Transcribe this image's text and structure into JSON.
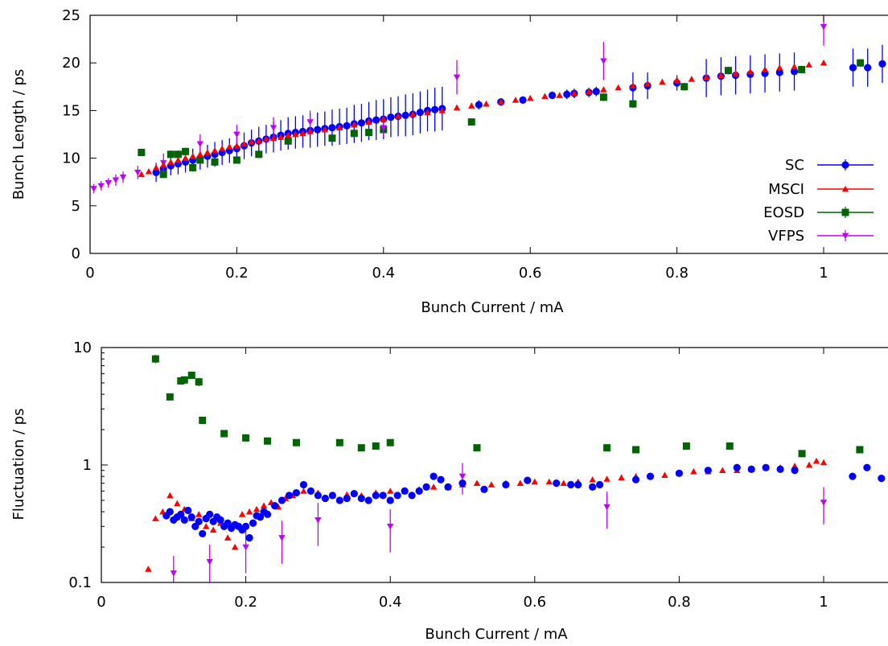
{
  "colors": {
    "SC": "#0000ff",
    "MSCI": "#ff0000",
    "EOSD": "#006400",
    "VFPS": "#bf00ff"
  },
  "chart_data": [
    {
      "type": "scatter",
      "xlabel": "Bunch Current / mA",
      "ylabel": "Bunch Length / ps",
      "xlim": [
        0,
        1.2
      ],
      "ylim": [
        0,
        25
      ],
      "xticks": [
        0,
        0.2,
        0.4,
        0.6,
        0.8,
        1
      ],
      "xtick_labels": [
        "0",
        "0.2",
        "0.4",
        "0.6",
        "0.8",
        "1"
      ],
      "yticks": [
        0,
        5,
        10,
        15,
        20,
        25
      ],
      "ytick_labels": [
        "0",
        "5",
        "10",
        "15",
        "20",
        "25"
      ],
      "legend": {
        "position": "right",
        "entries": [
          "SC",
          "MSCI",
          "EOSD",
          "VFPS"
        ]
      },
      "series": [
        {
          "name": "SC",
          "marker": "circle",
          "line": true,
          "x": [
            0.09,
            0.1,
            0.11,
            0.12,
            0.13,
            0.14,
            0.15,
            0.16,
            0.17,
            0.18,
            0.19,
            0.2,
            0.21,
            0.22,
            0.23,
            0.24,
            0.25,
            0.26,
            0.27,
            0.28,
            0.29,
            0.3,
            0.31,
            0.32,
            0.33,
            0.34,
            0.35,
            0.36,
            0.37,
            0.38,
            0.39,
            0.4,
            0.41,
            0.42,
            0.43,
            0.44,
            0.45,
            0.46,
            0.47,
            0.48,
            0.53,
            0.56,
            0.59,
            0.63,
            0.65,
            0.66,
            0.68,
            0.69,
            0.74,
            0.76,
            0.8,
            0.84,
            0.86,
            0.88,
            0.9,
            0.92,
            0.94,
            0.96,
            1.04,
            1.06,
            1.08
          ],
          "y": [
            8.5,
            8.9,
            9.2,
            9.4,
            9.6,
            9.8,
            10.0,
            10.2,
            10.4,
            10.6,
            10.8,
            11.0,
            11.3,
            11.6,
            11.8,
            12.0,
            12.2,
            12.4,
            12.6,
            12.7,
            12.8,
            12.9,
            13.0,
            13.1,
            13.2,
            13.3,
            13.4,
            13.6,
            13.7,
            13.9,
            14.0,
            14.1,
            14.3,
            14.4,
            14.5,
            14.6,
            14.8,
            15.0,
            15.1,
            15.2,
            15.6,
            15.9,
            16.1,
            16.6,
            16.7,
            16.8,
            16.9,
            17.0,
            17.4,
            17.6,
            17.9,
            18.4,
            18.6,
            18.7,
            18.8,
            18.9,
            19.0,
            19.1,
            19.5,
            19.5,
            19.9
          ],
          "err": [
            1.0,
            1.0,
            1.0,
            1.1,
            1.1,
            1.2,
            1.2,
            1.2,
            1.3,
            1.3,
            1.3,
            1.4,
            1.4,
            1.4,
            1.5,
            1.5,
            1.6,
            1.6,
            1.7,
            1.7,
            1.7,
            1.8,
            1.8,
            1.8,
            1.9,
            1.9,
            1.9,
            2.0,
            2.0,
            2.0,
            2.1,
            2.1,
            2.1,
            2.1,
            2.2,
            2.2,
            2.2,
            2.2,
            2.3,
            2.3,
            0.5,
            0.4,
            0.4,
            0.4,
            0.5,
            0.5,
            0.5,
            0.5,
            1.6,
            1.4,
            0.8,
            2.0,
            2.0,
            2.0,
            2.0,
            2.0,
            2.0,
            2.0,
            2.0,
            2.0,
            2.0
          ]
        },
        {
          "name": "MSCI",
          "marker": "triangle-up",
          "line": true,
          "x": [
            0.07,
            0.08,
            0.09,
            0.1,
            0.11,
            0.12,
            0.13,
            0.14,
            0.15,
            0.16,
            0.17,
            0.18,
            0.19,
            0.2,
            0.21,
            0.22,
            0.23,
            0.24,
            0.25,
            0.26,
            0.27,
            0.28,
            0.29,
            0.3,
            0.32,
            0.34,
            0.36,
            0.38,
            0.4,
            0.42,
            0.44,
            0.46,
            0.48,
            0.5,
            0.52,
            0.54,
            0.56,
            0.58,
            0.6,
            0.62,
            0.64,
            0.66,
            0.68,
            0.7,
            0.72,
            0.74,
            0.76,
            0.78,
            0.8,
            0.82,
            0.84,
            0.86,
            0.88,
            0.9,
            0.92,
            0.94,
            0.96,
            0.98,
            1.0
          ],
          "y": [
            8.3,
            8.6,
            9.0,
            9.3,
            9.6,
            9.8,
            10.0,
            10.2,
            10.4,
            10.6,
            10.8,
            11.0,
            11.2,
            11.3,
            11.5,
            11.7,
            11.8,
            12.0,
            12.1,
            12.2,
            12.4,
            12.5,
            12.6,
            12.8,
            13.0,
            13.2,
            13.5,
            13.8,
            14.1,
            14.4,
            14.6,
            14.8,
            15.0,
            15.3,
            15.5,
            15.7,
            15.9,
            16.1,
            16.3,
            16.5,
            16.6,
            16.8,
            17.0,
            17.2,
            17.4,
            17.6,
            17.8,
            18.0,
            18.2,
            18.3,
            18.5,
            18.7,
            18.9,
            19.1,
            19.3,
            19.5,
            19.6,
            19.8,
            20.0
          ]
        },
        {
          "name": "EOSD",
          "marker": "square",
          "line": true,
          "x": [
            0.07,
            0.1,
            0.11,
            0.12,
            0.13,
            0.14,
            0.15,
            0.17,
            0.2,
            0.23,
            0.27,
            0.33,
            0.36,
            0.38,
            0.4,
            0.52,
            0.7,
            0.74,
            0.81,
            0.87,
            0.97,
            1.05
          ],
          "y": [
            10.6,
            8.3,
            10.4,
            10.4,
            10.7,
            9.0,
            9.8,
            9.6,
            9.8,
            10.4,
            11.8,
            12.1,
            12.6,
            12.7,
            13.0,
            13.8,
            16.4,
            15.7,
            17.5,
            19.2,
            19.3,
            20.0
          ],
          "err": [
            0.4,
            0.4,
            0.4,
            0.4,
            0.4,
            0.3,
            0.3,
            0.3,
            0.3,
            0.3,
            0.3,
            0.3,
            0.3,
            0.3,
            0.3,
            0.3,
            0.4,
            0.4,
            0.4,
            0.4,
            0.4,
            0.4
          ]
        },
        {
          "name": "VFPS",
          "marker": "triangle-down",
          "line": true,
          "x": [
            0.005,
            0.015,
            0.025,
            0.035,
            0.045,
            0.065,
            0.1,
            0.15,
            0.2,
            0.25,
            0.3,
            0.4,
            0.5,
            0.7,
            1.0
          ],
          "y": [
            6.8,
            7.1,
            7.4,
            7.7,
            8.0,
            8.5,
            9.5,
            11.5,
            12.5,
            13.2,
            13.8,
            13.2,
            18.5,
            20.2,
            23.8
          ],
          "err": [
            0.5,
            0.5,
            0.5,
            0.6,
            0.6,
            0.7,
            1.0,
            1.0,
            1.0,
            1.1,
            1.2,
            1.0,
            1.8,
            2.0,
            2.0
          ]
        }
      ]
    },
    {
      "type": "scatter",
      "xlabel": "Bunch Current / mA",
      "ylabel": "Fluctuation / ps",
      "yscale": "log",
      "xlim": [
        0,
        1.2
      ],
      "ylim": [
        0.1,
        10
      ],
      "xticks": [
        0,
        0.2,
        0.4,
        0.6,
        0.8,
        1
      ],
      "xtick_labels": [
        "0",
        "0.2",
        "0.4",
        "0.6",
        "0.8",
        "1"
      ],
      "yticks": [
        0.1,
        1,
        10
      ],
      "ytick_labels": [
        "0.1",
        "1",
        "10"
      ],
      "series": [
        {
          "name": "SC",
          "marker": "circle",
          "x": [
            0.09,
            0.095,
            0.1,
            0.105,
            0.11,
            0.115,
            0.12,
            0.125,
            0.13,
            0.135,
            0.14,
            0.145,
            0.15,
            0.155,
            0.16,
            0.165,
            0.17,
            0.175,
            0.18,
            0.185,
            0.19,
            0.195,
            0.2,
            0.205,
            0.21,
            0.215,
            0.22,
            0.225,
            0.23,
            0.24,
            0.25,
            0.26,
            0.27,
            0.28,
            0.29,
            0.3,
            0.31,
            0.32,
            0.33,
            0.34,
            0.35,
            0.36,
            0.37,
            0.38,
            0.39,
            0.4,
            0.41,
            0.42,
            0.43,
            0.44,
            0.45,
            0.46,
            0.47,
            0.48,
            0.5,
            0.53,
            0.56,
            0.59,
            0.63,
            0.65,
            0.66,
            0.68,
            0.69,
            0.74,
            0.76,
            0.8,
            0.84,
            0.88,
            0.9,
            0.92,
            0.94,
            0.96,
            1.04,
            1.06,
            1.08
          ],
          "y": [
            0.37,
            0.4,
            0.34,
            0.36,
            0.38,
            0.34,
            0.41,
            0.36,
            0.3,
            0.33,
            0.26,
            0.35,
            0.38,
            0.33,
            0.36,
            0.34,
            0.3,
            0.32,
            0.29,
            0.31,
            0.3,
            0.28,
            0.3,
            0.24,
            0.32,
            0.37,
            0.36,
            0.4,
            0.38,
            0.45,
            0.5,
            0.55,
            0.58,
            0.68,
            0.6,
            0.55,
            0.52,
            0.55,
            0.5,
            0.52,
            0.57,
            0.52,
            0.5,
            0.55,
            0.55,
            0.5,
            0.55,
            0.6,
            0.55,
            0.6,
            0.65,
            0.8,
            0.75,
            0.65,
            0.7,
            0.62,
            0.68,
            0.74,
            0.7,
            0.68,
            0.68,
            0.65,
            0.68,
            0.75,
            0.8,
            0.85,
            0.9,
            0.95,
            0.92,
            0.95,
            0.92,
            0.9,
            0.8,
            0.95,
            0.77
          ]
        },
        {
          "name": "MSCI",
          "marker": "triangle-up",
          "x": [
            0.065,
            0.075,
            0.085,
            0.095,
            0.105,
            0.115,
            0.125,
            0.135,
            0.145,
            0.155,
            0.165,
            0.175,
            0.185,
            0.195,
            0.205,
            0.215,
            0.225,
            0.235,
            0.245,
            0.255,
            0.265,
            0.28,
            0.3,
            0.32,
            0.34,
            0.36,
            0.38,
            0.4,
            0.42,
            0.44,
            0.46,
            0.48,
            0.5,
            0.52,
            0.54,
            0.56,
            0.58,
            0.6,
            0.62,
            0.64,
            0.66,
            0.68,
            0.7,
            0.72,
            0.74,
            0.76,
            0.78,
            0.8,
            0.82,
            0.84,
            0.86,
            0.88,
            0.9,
            0.92,
            0.94,
            0.96,
            0.98,
            0.99,
            1.0
          ],
          "y": [
            0.13,
            0.35,
            0.4,
            0.55,
            0.47,
            0.42,
            0.35,
            0.38,
            0.3,
            0.28,
            0.32,
            0.24,
            0.2,
            0.38,
            0.4,
            0.42,
            0.45,
            0.48,
            0.44,
            0.52,
            0.55,
            0.6,
            0.58,
            0.55,
            0.56,
            0.55,
            0.58,
            0.6,
            0.6,
            0.62,
            0.65,
            0.65,
            0.68,
            0.7,
            0.68,
            0.7,
            0.7,
            0.72,
            0.72,
            0.7,
            0.72,
            0.75,
            0.76,
            0.78,
            0.8,
            0.8,
            0.82,
            0.85,
            0.88,
            0.88,
            0.9,
            0.9,
            0.92,
            0.95,
            0.95,
            0.98,
            1.0,
            1.08,
            1.05
          ]
        },
        {
          "name": "EOSD",
          "marker": "square",
          "x": [
            0.075,
            0.095,
            0.11,
            0.115,
            0.125,
            0.135,
            0.14,
            0.17,
            0.2,
            0.23,
            0.27,
            0.33,
            0.36,
            0.38,
            0.4,
            0.52,
            0.7,
            0.74,
            0.81,
            0.87,
            0.97,
            1.05
          ],
          "y": [
            8.0,
            3.8,
            5.2,
            5.3,
            5.8,
            5.1,
            2.4,
            1.85,
            1.7,
            1.6,
            1.55,
            1.55,
            1.4,
            1.45,
            1.55,
            1.4,
            1.4,
            1.35,
            1.45,
            1.45,
            1.25,
            1.35
          ],
          "relerr": [
            0.08,
            0.06,
            0.07,
            0.07,
            0.06,
            0.08,
            0.06,
            0.06,
            0.06,
            0.06,
            0.06,
            0.06,
            0.06,
            0.06,
            0.06,
            0.06,
            0.06,
            0.06,
            0.06,
            0.06,
            0.06,
            0.06
          ]
        },
        {
          "name": "VFPS",
          "marker": "triangle-down",
          "x": [
            0.1,
            0.15,
            0.2,
            0.25,
            0.3,
            0.4,
            0.5,
            0.7,
            1.0
          ],
          "y": [
            0.12,
            0.15,
            0.2,
            0.24,
            0.34,
            0.3,
            0.8,
            0.44,
            0.48
          ],
          "relerr": [
            0.4,
            0.4,
            0.4,
            0.4,
            0.4,
            0.4,
            0.3,
            0.35,
            0.35
          ]
        }
      ]
    }
  ]
}
